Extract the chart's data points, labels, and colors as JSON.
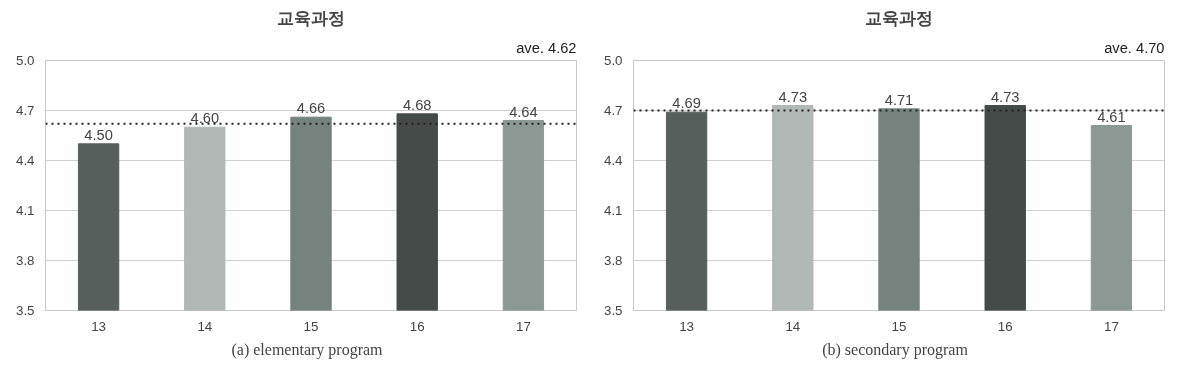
{
  "chart_data": [
    {
      "type": "bar",
      "title": "교육과정",
      "categories": [
        "13",
        "14",
        "15",
        "16",
        "17"
      ],
      "values": [
        4.5,
        4.6,
        4.66,
        4.68,
        4.64
      ],
      "value_labels": [
        "4.50",
        "4.60",
        "4.66",
        "4.68",
        "4.64"
      ],
      "colors": [
        "#575f5c",
        "#b1b8b5",
        "#76827e",
        "#454b49",
        "#8c9893"
      ],
      "ylim": [
        3.5,
        5.0
      ],
      "yticks": [
        {
          "value": 3.5,
          "label": "3.5"
        },
        {
          "value": 3.8,
          "label": "3.8"
        },
        {
          "value": 4.1,
          "label": "4.1"
        },
        {
          "value": 4.4,
          "label": "4.4"
        },
        {
          "value": 4.7,
          "label": "4.7"
        },
        {
          "value": 5.0,
          "label": "5.0"
        }
      ],
      "grid": "y",
      "ref_lines": [
        {
          "axis": "y",
          "value": 4.62,
          "label": "ave. 4.62",
          "line_style": "dotted",
          "color": "#222222"
        }
      ],
      "annotations": [
        "(a)  elementary  program"
      ]
    },
    {
      "type": "bar",
      "title": "교육과정",
      "categories": [
        "13",
        "14",
        "15",
        "16",
        "17"
      ],
      "values": [
        4.69,
        4.73,
        4.71,
        4.73,
        4.61
      ],
      "value_labels": [
        "4.69",
        "4.73",
        "4.71",
        "4.73",
        "4.61"
      ],
      "colors": [
        "#575f5c",
        "#b1b8b5",
        "#76827e",
        "#454b49",
        "#8c9893"
      ],
      "ylim": [
        3.5,
        5.0
      ],
      "yticks": [
        {
          "value": 3.5,
          "label": "3.5"
        },
        {
          "value": 3.8,
          "label": "3.8"
        },
        {
          "value": 4.1,
          "label": "4.1"
        },
        {
          "value": 4.4,
          "label": "4.4"
        },
        {
          "value": 4.7,
          "label": "4.7"
        },
        {
          "value": 5.0,
          "label": "5.0"
        }
      ],
      "grid": "y",
      "ref_lines": [
        {
          "axis": "y",
          "value": 4.7,
          "label": "ave. 4.70",
          "line_style": "dotted",
          "color": "#222222"
        }
      ],
      "annotations": [
        "(b)  secondary  program"
      ]
    }
  ]
}
